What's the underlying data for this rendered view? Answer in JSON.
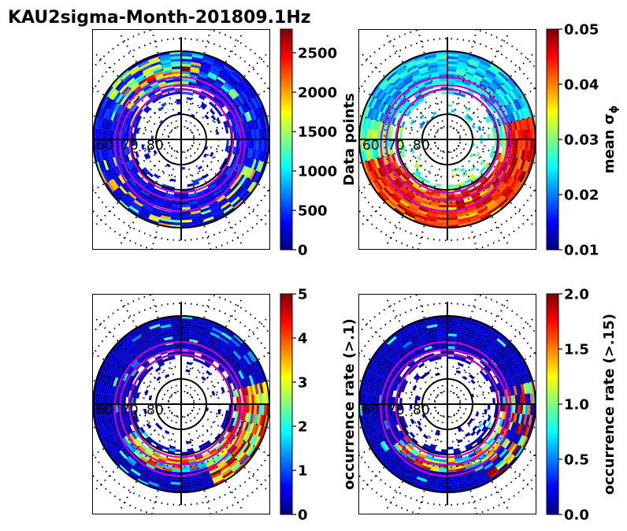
{
  "figure_title": "KAU2sigma-Month-201809.1Hz",
  "latitude_labels": [
    "60",
    "70",
    "80"
  ],
  "colormap": [
    "#00007f",
    "#0000ff",
    "#007fff",
    "#00ffff",
    "#7fff7f",
    "#ffff00",
    "#ff7f00",
    "#ff0000",
    "#7f0000"
  ],
  "colors": {
    "boundary": "#cc00cc",
    "grid": "#000000"
  },
  "chart_data": [
    {
      "type": "heatmap",
      "projection": "polar",
      "id": "p1",
      "colorbar_label": "Data points",
      "vmin": 0,
      "vmax": 2800,
      "ticks": [
        0,
        500,
        1000,
        1500,
        2000,
        2500
      ],
      "tick_labels": [
        "0",
        "500",
        "1000",
        "1500",
        "2000",
        "2500"
      ],
      "lat_range": [
        55,
        90
      ],
      "pattern": "count"
    },
    {
      "type": "heatmap",
      "projection": "polar",
      "id": "p2",
      "colorbar_label": "mean σ",
      "colorbar_label_sub": "ϕ",
      "vmin": 0.01,
      "vmax": 0.05,
      "ticks": [
        0.01,
        0.02,
        0.03,
        0.04,
        0.05
      ],
      "tick_labels": [
        "0.01",
        "0.02",
        "0.03",
        "0.04",
        "0.05"
      ],
      "lat_range": [
        55,
        90
      ],
      "pattern": "mean"
    },
    {
      "type": "heatmap",
      "projection": "polar",
      "id": "p3",
      "colorbar_label": "occurrence rate (>.1)",
      "vmin": 0,
      "vmax": 5,
      "ticks": [
        0,
        1,
        2,
        3,
        4,
        5
      ],
      "tick_labels": [
        "0",
        "1",
        "2",
        "3",
        "4",
        "5"
      ],
      "lat_range": [
        55,
        90
      ],
      "pattern": "occ1"
    },
    {
      "type": "heatmap",
      "projection": "polar",
      "id": "p4",
      "colorbar_label": "occurrence rate (>.15)",
      "vmin": 0,
      "vmax": 2,
      "ticks": [
        0,
        0.5,
        1,
        1.5,
        2
      ],
      "tick_labels": [
        "0.0",
        "0.5",
        "1.0",
        "1.5",
        "2.0"
      ],
      "lat_range": [
        55,
        90
      ],
      "pattern": "occ2"
    }
  ]
}
